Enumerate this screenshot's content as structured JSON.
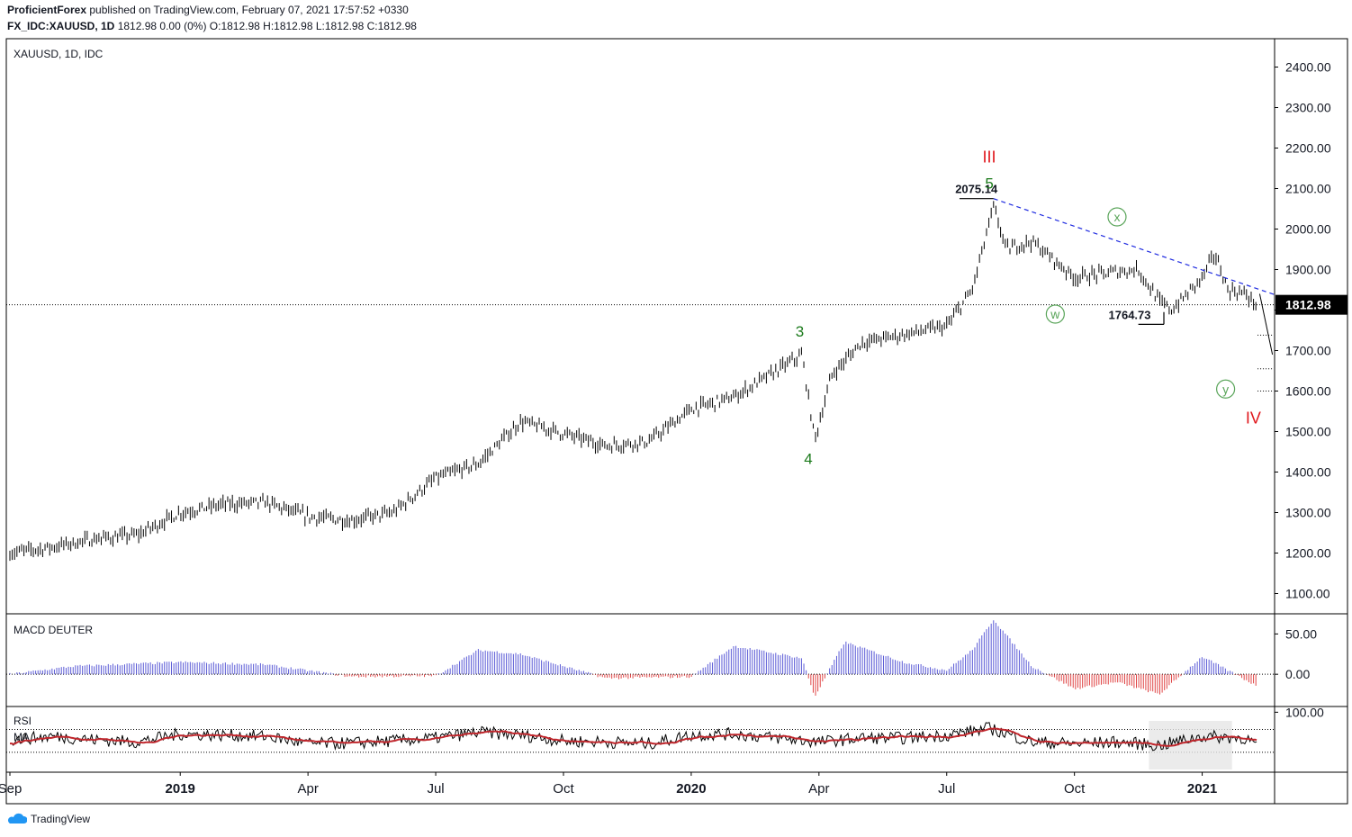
{
  "header": {
    "publisher": "ProficientForex",
    "published_text": "published on TradingView.com, February 07, 2021 17:57:52 +0330",
    "symbol_line_bold": "FX_IDC:XAUUSD, 1D",
    "symbol_line_values": "1812.98 0.00 (0%) O:1812.98 H:1812.98 L:1812.98 C:1812.98"
  },
  "footer": {
    "brand": "TradingView"
  },
  "colors": {
    "bar": "#000000",
    "wave_green": "#1b7a1b",
    "wave_red": "#e0171c",
    "trend_blue": "#1f2be0",
    "macd_pos": "#5a5ad6",
    "macd_neg": "#e04545",
    "rsi_line": "#000000",
    "rsi_ma": "#c0272d",
    "circle_green": "#5aa55a"
  },
  "chart_data": [
    {
      "type": "candlestick",
      "title": "XAUUSD, 1D, IDC",
      "last_price": "1812.98",
      "ylim": [
        1050,
        2470
      ],
      "y_ticks": [
        "2400.00",
        "2300.00",
        "2200.00",
        "2100.00",
        "2000.00",
        "1900.00",
        "1800.00",
        "1700.00",
        "1600.00",
        "1500.00",
        "1400.00",
        "1300.00",
        "1200.00",
        "1100.00"
      ],
      "x_ticks": [
        "Sep",
        "2019",
        "Apr",
        "Jul",
        "Oct",
        "2020",
        "Apr",
        "Jul",
        "Oct",
        "2021"
      ],
      "x_tick_bold": [
        "2019",
        "2020",
        "2021"
      ],
      "x_tick_months": [
        0,
        4,
        7,
        10,
        13,
        16,
        19,
        22,
        25,
        28
      ],
      "x_range_months": [
        0,
        29.7
      ],
      "price_path": [
        [
          0,
          1200
        ],
        [
          1,
          1215
        ],
        [
          2,
          1235
        ],
        [
          3,
          1245
        ],
        [
          4,
          1300
        ],
        [
          5,
          1320
        ],
        [
          6,
          1325
        ],
        [
          7,
          1290
        ],
        [
          8,
          1280
        ],
        [
          9,
          1300
        ],
        [
          10,
          1385
        ],
        [
          11,
          1420
        ],
        [
          12,
          1525
        ],
        [
          13,
          1495
        ],
        [
          14,
          1465
        ],
        [
          15,
          1475
        ],
        [
          16,
          1555
        ],
        [
          17,
          1585
        ],
        [
          18,
          1650
        ],
        [
          18.6,
          1690
        ],
        [
          18.9,
          1480
        ],
        [
          19.3,
          1640
        ],
        [
          20,
          1720
        ],
        [
          21,
          1740
        ],
        [
          22,
          1760
        ],
        [
          22.6,
          1850
        ],
        [
          23.1,
          2055
        ],
        [
          23.4,
          1950
        ],
        [
          24,
          1970
        ],
        [
          25,
          1880
        ],
        [
          26,
          1895
        ],
        [
          26.5,
          1900
        ],
        [
          27,
          1820
        ],
        [
          27.3,
          1800
        ],
        [
          28,
          1880
        ],
        [
          28.3,
          1940
        ],
        [
          28.6,
          1850
        ],
        [
          29,
          1840
        ],
        [
          29.3,
          1812
        ]
      ],
      "annotations": {
        "wave3": "3",
        "wave4": "4",
        "wave5": "5",
        "waveIII": "III",
        "waveIV": "IV",
        "w": "w",
        "x": "x",
        "y": "y",
        "high_label": "2075.14",
        "low_label": "1764.73"
      }
    },
    {
      "type": "histogram",
      "title": "MACD DEUTER",
      "ylim": [
        -40,
        75
      ],
      "y_ticks": [
        "50.00",
        "0.00"
      ],
      "series": [
        [
          0,
          0
        ],
        [
          1.5,
          10
        ],
        [
          4,
          15
        ],
        [
          6,
          12
        ],
        [
          8,
          -3
        ],
        [
          10,
          -2
        ],
        [
          11,
          30
        ],
        [
          12,
          25
        ],
        [
          14,
          -5
        ],
        [
          16,
          -3
        ],
        [
          17,
          35
        ],
        [
          18.6,
          20
        ],
        [
          18.9,
          -28
        ],
        [
          19.6,
          40
        ],
        [
          21,
          15
        ],
        [
          22,
          5
        ],
        [
          22.6,
          30
        ],
        [
          23.1,
          68
        ],
        [
          24,
          10
        ],
        [
          25,
          -18
        ],
        [
          26,
          -10
        ],
        [
          27,
          -25
        ],
        [
          28,
          22
        ],
        [
          29.3,
          -15
        ]
      ]
    },
    {
      "type": "line",
      "title": "RSI",
      "ma_label": "MA",
      "ylim": [
        0,
        110
      ],
      "y_ticks": [
        "100.00"
      ],
      "series": [
        {
          "values": [
            [
              0,
              52
            ],
            [
              1,
              58
            ],
            [
              2,
              52
            ],
            [
              3,
              48
            ],
            [
              4,
              62
            ],
            [
              5,
              60
            ],
            [
              6,
              58
            ],
            [
              7,
              45
            ],
            [
              8,
              46
            ],
            [
              9,
              50
            ],
            [
              10,
              55
            ],
            [
              11,
              65
            ],
            [
              12,
              60
            ],
            [
              13,
              50
            ],
            [
              14,
              48
            ],
            [
              15,
              45
            ],
            [
              16,
              60
            ],
            [
              17,
              62
            ],
            [
              18,
              55
            ],
            [
              19,
              48
            ],
            [
              20,
              55
            ],
            [
              21,
              55
            ],
            [
              22,
              60
            ],
            [
              23,
              72
            ],
            [
              24,
              48
            ],
            [
              25,
              45
            ],
            [
              26,
              48
            ],
            [
              27,
              42
            ],
            [
              28,
              58
            ],
            [
              29,
              55
            ],
            [
              29.3,
              42
            ]
          ]
        }
      ]
    }
  ]
}
